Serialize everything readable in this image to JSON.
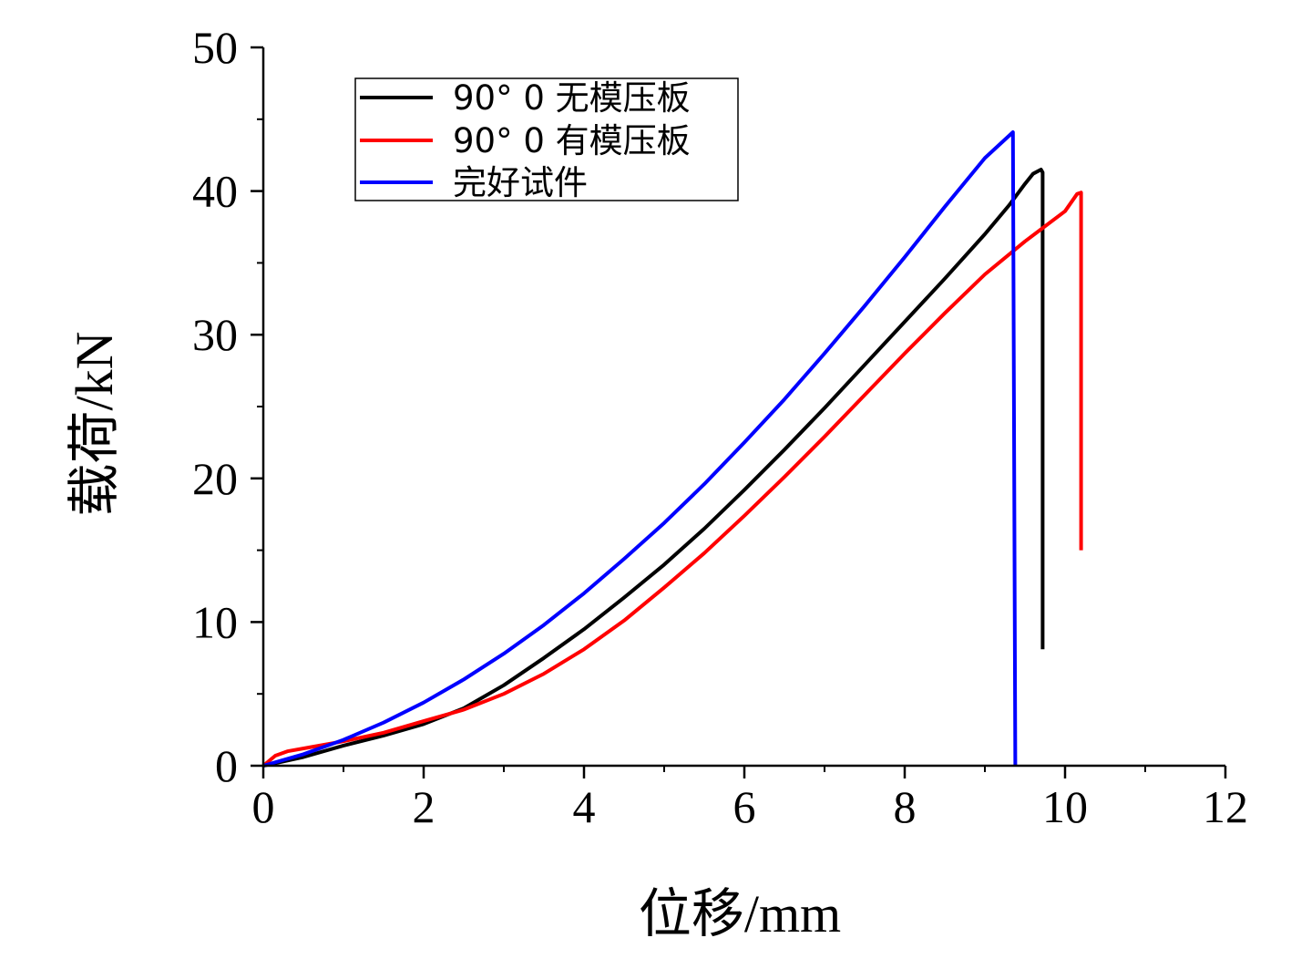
{
  "chart_data": {
    "type": "line",
    "xlabel": "位移/mm",
    "ylabel": "载荷/kN",
    "xlim": [
      0,
      12
    ],
    "ylim": [
      0,
      50
    ],
    "xticks": [
      "0",
      "2",
      "4",
      "6",
      "8",
      "10",
      "12"
    ],
    "yticks": [
      "0",
      "10",
      "20",
      "30",
      "40",
      "50"
    ],
    "grid": false,
    "legend_position": "top-left",
    "series": [
      {
        "name": "90° 0 无模压板",
        "color": "#000000",
        "points": [
          [
            0,
            0
          ],
          [
            0.5,
            0.6
          ],
          [
            1,
            1.4
          ],
          [
            1.5,
            2.1
          ],
          [
            2,
            2.9
          ],
          [
            2.5,
            4.0
          ],
          [
            3,
            5.6
          ],
          [
            3.5,
            7.5
          ],
          [
            4,
            9.5
          ],
          [
            4.5,
            11.7
          ],
          [
            5,
            14.0
          ],
          [
            5.5,
            16.5
          ],
          [
            6,
            19.2
          ],
          [
            6.5,
            22.0
          ],
          [
            7,
            24.9
          ],
          [
            7.5,
            27.9
          ],
          [
            8,
            30.9
          ],
          [
            8.5,
            33.9
          ],
          [
            9,
            37.0
          ],
          [
            9.3,
            39.0
          ],
          [
            9.5,
            40.5
          ],
          [
            9.6,
            41.2
          ],
          [
            9.7,
            41.5
          ],
          [
            9.72,
            41.3
          ],
          [
            9.72,
            8.1
          ]
        ]
      },
      {
        "name": "90° 0 有模压板",
        "color": "#ff0000",
        "points": [
          [
            0,
            0
          ],
          [
            0.15,
            0.7
          ],
          [
            0.3,
            1.0
          ],
          [
            0.6,
            1.3
          ],
          [
            1,
            1.7
          ],
          [
            1.5,
            2.3
          ],
          [
            2,
            3.1
          ],
          [
            2.5,
            3.9
          ],
          [
            3,
            5.0
          ],
          [
            3.5,
            6.4
          ],
          [
            4,
            8.1
          ],
          [
            4.5,
            10.1
          ],
          [
            5,
            12.4
          ],
          [
            5.5,
            14.8
          ],
          [
            6,
            17.4
          ],
          [
            6.5,
            20.1
          ],
          [
            7,
            22.9
          ],
          [
            7.5,
            25.8
          ],
          [
            8,
            28.7
          ],
          [
            8.5,
            31.5
          ],
          [
            9,
            34.2
          ],
          [
            9.5,
            36.5
          ],
          [
            10,
            38.6
          ],
          [
            10.15,
            39.8
          ],
          [
            10.2,
            39.9
          ],
          [
            10.2,
            15.0
          ]
        ]
      },
      {
        "name": "完好试件",
        "color": "#0000ff",
        "points": [
          [
            0,
            0
          ],
          [
            0.5,
            0.8
          ],
          [
            1,
            1.8
          ],
          [
            1.5,
            3.0
          ],
          [
            2,
            4.4
          ],
          [
            2.5,
            6.0
          ],
          [
            3,
            7.8
          ],
          [
            3.5,
            9.8
          ],
          [
            4,
            12.0
          ],
          [
            4.5,
            14.4
          ],
          [
            5,
            16.9
          ],
          [
            5.5,
            19.6
          ],
          [
            6,
            22.5
          ],
          [
            6.5,
            25.5
          ],
          [
            7,
            28.7
          ],
          [
            7.5,
            32.0
          ],
          [
            8,
            35.4
          ],
          [
            8.5,
            38.9
          ],
          [
            9,
            42.3
          ],
          [
            9.35,
            44.1
          ],
          [
            9.38,
            0
          ]
        ]
      }
    ]
  }
}
